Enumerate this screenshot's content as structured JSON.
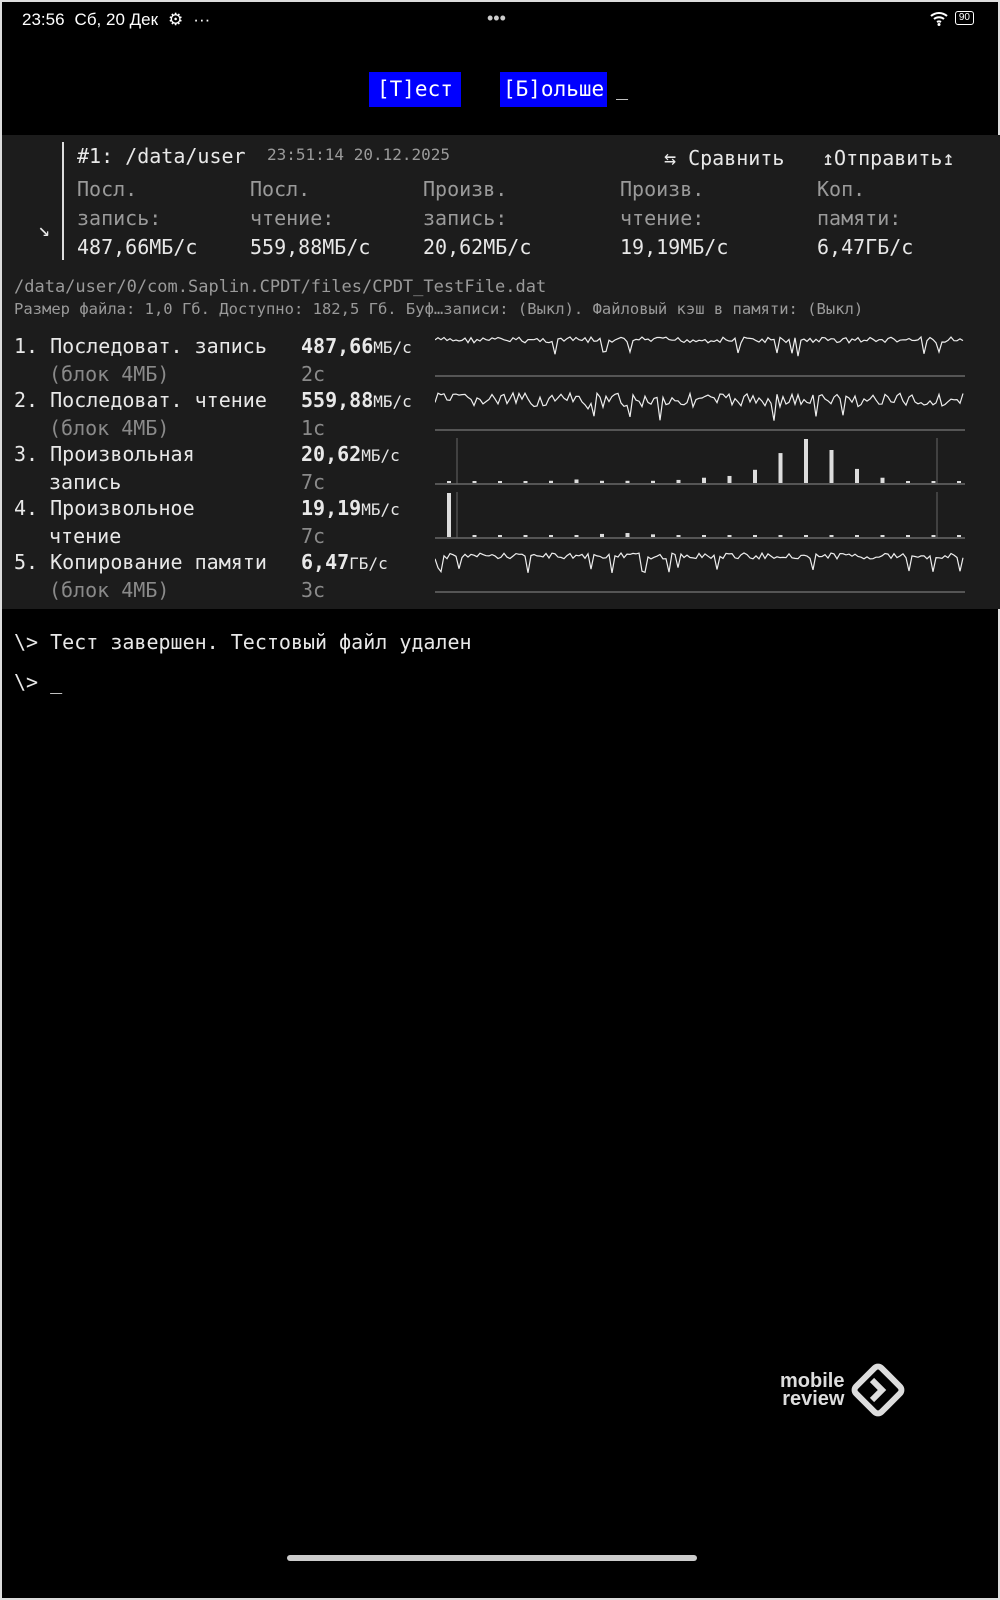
{
  "status_bar": {
    "time": "23:56",
    "date": "Сб, 20 Дек",
    "battery": "90",
    "icons": [
      "gear-icon",
      "more-icon",
      "wifi-icon",
      "battery-icon"
    ]
  },
  "menu": {
    "test_button": "[Т]ест",
    "more_button": "[Б]ольше",
    "cursor": "_"
  },
  "result": {
    "title": "#1: /data/user",
    "timestamp": "23:51:14 20.12.2025",
    "compare": "⇆ Сравнить",
    "send": "↥Отправить↥",
    "columns": [
      {
        "l1": "Посл.",
        "l2": "запись:",
        "v": "487,66МБ/с"
      },
      {
        "l1": "Посл.",
        "l2": "чтение:",
        "v": "559,88МБ/с"
      },
      {
        "l1": "Произв.",
        "l2": "запись:",
        "v": "20,62МБ/с"
      },
      {
        "l1": "Произв.",
        "l2": "чтение:",
        "v": "19,19МБ/с"
      },
      {
        "l1": "Коп.",
        "l2": "памяти:",
        "v": "6,47ГБ/с"
      }
    ]
  },
  "file": {
    "path": "/data/user/0/com.Saplin.CPDT/files/CPDT_TestFile.dat",
    "info": "Размер файла: 1,0 Гб. Доступно: 182,5 Гб. Буф…записи: (Выкл). Файловый кэш в памяти: (Выкл)"
  },
  "tests": [
    {
      "num": "1.",
      "name": "Последоват. запись",
      "sub": "(блок 4МБ)",
      "value": "487,66",
      "unit": "МБ/с",
      "time": "2с",
      "graph": "line"
    },
    {
      "num": "2.",
      "name": "Последоват. чтение",
      "sub": "(блок 4МБ)",
      "value": "559,88",
      "unit": "МБ/с",
      "time": "1с",
      "graph": "line"
    },
    {
      "num": "3.",
      "name": "Произвольная",
      "sub": "запись",
      "value": "20,62",
      "unit": "МБ/с",
      "time": "7с",
      "graph": "bars",
      "bars": [
        0.02,
        0.02,
        0.02,
        0.02,
        0.05,
        0.08,
        0.05,
        0.05,
        0.05,
        0.07,
        0.12,
        0.16,
        0.3,
        0.68,
        1.0,
        0.75,
        0.32,
        0.12,
        0.03,
        0.02,
        0.02
      ]
    },
    {
      "num": "4.",
      "name": "Произвольное",
      "sub": "чтение",
      "value": "19,19",
      "unit": "МБ/с",
      "time": "7с",
      "graph": "bars",
      "bars": [
        1.0,
        0.02,
        0.02,
        0.02,
        0.02,
        0.04,
        0.07,
        0.09,
        0.06,
        0.02,
        0.02,
        0.02,
        0.02,
        0.02,
        0.04,
        0.04,
        0.02,
        0.04,
        0.02,
        0.02,
        0.02
      ]
    },
    {
      "num": "5.",
      "name": "Копирование памяти",
      "sub": "(блок 4МБ)",
      "value": "6,47",
      "unit": "ГБ/с",
      "time": "3с",
      "graph": "line"
    }
  ],
  "terminal": {
    "line1": "\\> Тест завершен. Тестовый файл удален",
    "line2": "\\> _"
  },
  "watermark": {
    "l1": "mobile",
    "l2": "review"
  }
}
